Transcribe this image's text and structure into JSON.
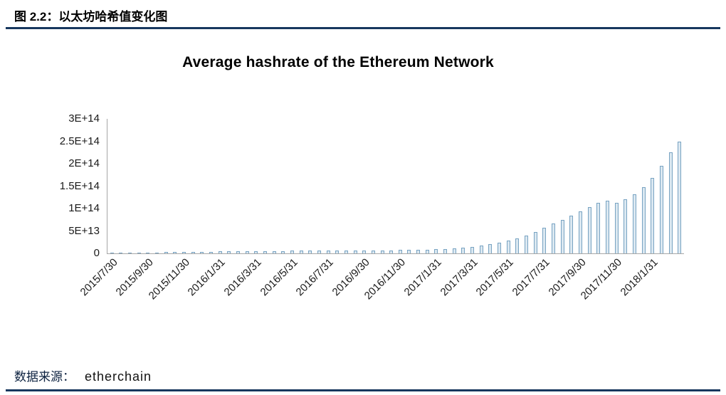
{
  "figure": {
    "caption": "图 2.2：以太坊哈希值变化图",
    "source_label": "数据来源：",
    "source_value": "etherchain"
  },
  "colors": {
    "rule_navy": "#17375e",
    "axis_gray": "#a6a6a6",
    "bar_fill": "#dbe8f1",
    "bar_border": "#78a3c2"
  },
  "chart_data": {
    "type": "bar",
    "title": "Average hashrate of the Ethereum Network",
    "xlabel": "",
    "ylabel": "",
    "value_unit": "H/s",
    "value_scale": 1000000000000.0,
    "ylim": [
      0,
      300000000000000.0
    ],
    "grid": false,
    "legend": "none",
    "y_ticks": [
      "3E+14",
      "2.5E+14",
      "2E+14",
      "1.5E+14",
      "1E+14",
      "5E+13",
      "0"
    ],
    "x_tick_labels": [
      "2015/7/30",
      "2015/9/30",
      "2015/11/30",
      "2016/1/31",
      "2016/3/31",
      "2016/5/31",
      "2016/7/31",
      "2016/9/30",
      "2016/11/30",
      "2017/1/31",
      "2017/3/31",
      "2017/5/31",
      "2017/7/31",
      "2017/9/30",
      "2017/11/30",
      "2018/1/31"
    ],
    "x_label_every_n_bars": 4,
    "sampling": "approx. bi-weekly averages, 2015/7/30 – 2018/2, values in units of 1e12 H/s",
    "values": [
      0.5,
      0.8,
      1.2,
      1.6,
      2.0,
      2.3,
      2.6,
      2.9,
      3.2,
      3.4,
      3.6,
      3.8,
      4.0,
      4.2,
      4.4,
      4.6,
      4.8,
      5.0,
      5.2,
      5.4,
      5.6,
      5.8,
      6.0,
      5.8,
      5.6,
      5.8,
      6.0,
      6.2,
      6.4,
      6.6,
      6.8,
      7.0,
      7.3,
      7.6,
      8.0,
      8.5,
      9.0,
      10.0,
      11.5,
      13.0,
      15.0,
      17.5,
      20.5,
      24.0,
      28.0,
      33.0,
      40.0,
      48.0,
      57.0,
      66.0,
      75.0,
      84.0,
      93.0,
      103.0,
      112.0,
      118.0,
      112.0,
      120.0,
      132.0,
      148.0,
      168.0,
      195.0,
      225.0,
      250.0
    ]
  }
}
